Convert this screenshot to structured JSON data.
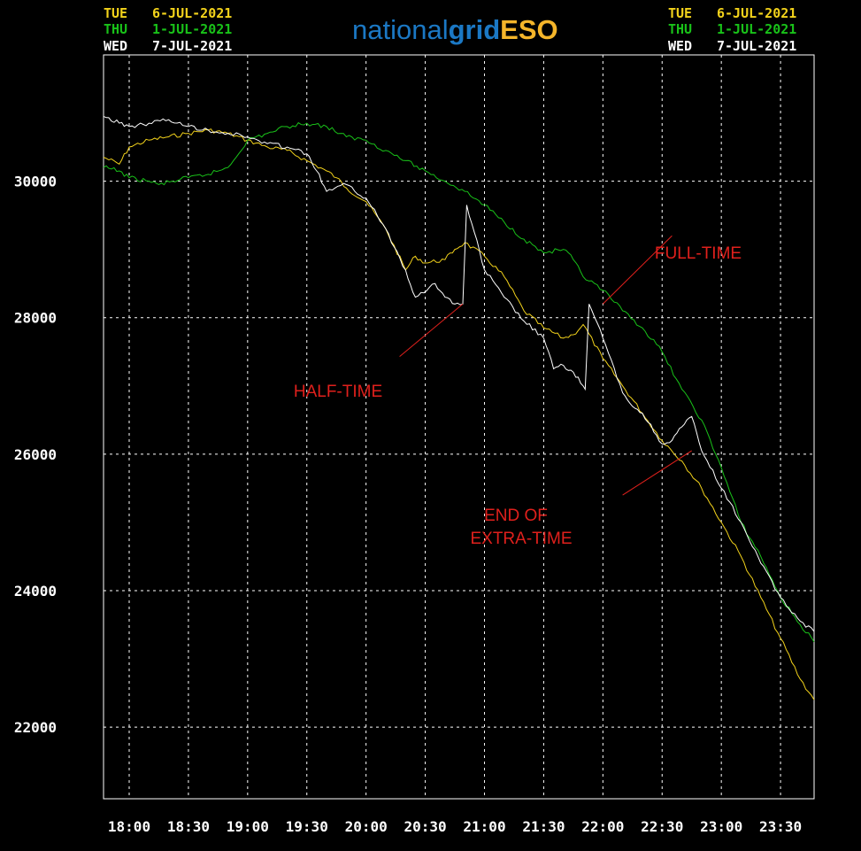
{
  "logo": {
    "part1": "national",
    "part2": "grid",
    "part3": "ESO"
  },
  "legend_left": [
    {
      "day": "TUE",
      "date": "6-JUL-2021",
      "color": "#f2d21b"
    },
    {
      "day": "THU",
      "date": "1-JUL-2021",
      "color": "#19c219"
    },
    {
      "day": "WED",
      "date": "7-JUL-2021",
      "color": "#ffffff"
    }
  ],
  "legend_right": [
    {
      "day": "TUE",
      "date": "6-JUL-2021",
      "color": "#f2d21b"
    },
    {
      "day": "THU",
      "date": "1-JUL-2021",
      "color": "#19c219"
    },
    {
      "day": "WED",
      "date": "7-JUL-2021",
      "color": "#ffffff"
    }
  ],
  "annotations": [
    {
      "text": "HALF-TIME",
      "color": "#e0201c"
    },
    {
      "text": "FULL-TIME",
      "color": "#e0201c"
    },
    {
      "text": "END OF",
      "color": "#e0201c"
    },
    {
      "text": "EXTRA-TIME",
      "color": "#e0201c"
    }
  ],
  "chart_data": {
    "type": "line",
    "x_ticks": [
      "18:00",
      "18:30",
      "19:00",
      "19:30",
      "20:00",
      "20:30",
      "21:00",
      "21:30",
      "22:00",
      "22:30",
      "23:00",
      "23:30"
    ],
    "y_ticks": [
      22000,
      24000,
      26000,
      28000,
      30000
    ],
    "xlim": [
      "17:47",
      "23:47"
    ],
    "ylim": [
      20950,
      31850
    ],
    "grid": true,
    "series": [
      {
        "name": "TUE 6-JUL-2021",
        "color": "#f2d21b",
        "points": [
          [
            "17:47",
            30350
          ],
          [
            "17:55",
            30250
          ],
          [
            "18:00",
            30500
          ],
          [
            "18:10",
            30600
          ],
          [
            "18:20",
            30650
          ],
          [
            "18:30",
            30700
          ],
          [
            "18:40",
            30750
          ],
          [
            "18:50",
            30700
          ],
          [
            "19:00",
            30600
          ],
          [
            "19:10",
            30500
          ],
          [
            "19:20",
            30450
          ],
          [
            "19:30",
            30300
          ],
          [
            "19:40",
            30150
          ],
          [
            "19:45",
            30050
          ],
          [
            "19:50",
            29900
          ],
          [
            "20:00",
            29700
          ],
          [
            "20:10",
            29300
          ],
          [
            "20:20",
            28700
          ],
          [
            "20:25",
            28900
          ],
          [
            "20:30",
            28800
          ],
          [
            "20:40",
            28850
          ],
          [
            "20:45",
            29000
          ],
          [
            "20:50",
            29100
          ],
          [
            "21:00",
            28900
          ],
          [
            "21:10",
            28600
          ],
          [
            "21:20",
            28100
          ],
          [
            "21:30",
            27850
          ],
          [
            "21:40",
            27700
          ],
          [
            "21:45",
            27750
          ],
          [
            "21:50",
            27900
          ],
          [
            "22:00",
            27400
          ],
          [
            "22:10",
            27000
          ],
          [
            "22:20",
            26600
          ],
          [
            "22:30",
            26200
          ],
          [
            "22:40",
            25900
          ],
          [
            "22:50",
            25500
          ],
          [
            "23:00",
            25000
          ],
          [
            "23:10",
            24500
          ],
          [
            "23:20",
            23900
          ],
          [
            "23:30",
            23300
          ],
          [
            "23:40",
            22700
          ],
          [
            "23:47",
            22400
          ]
        ]
      },
      {
        "name": "THU 1-JUL-2021",
        "color": "#19c219",
        "points": [
          [
            "17:47",
            30200
          ],
          [
            "17:55",
            30150
          ],
          [
            "18:00",
            30050
          ],
          [
            "18:10",
            30000
          ],
          [
            "18:15",
            29950
          ],
          [
            "18:30",
            30050
          ],
          [
            "18:40",
            30100
          ],
          [
            "18:50",
            30200
          ],
          [
            "19:00",
            30600
          ],
          [
            "19:10",
            30700
          ],
          [
            "19:20",
            30800
          ],
          [
            "19:30",
            30850
          ],
          [
            "19:40",
            30800
          ],
          [
            "19:50",
            30650
          ],
          [
            "20:00",
            30600
          ],
          [
            "20:10",
            30450
          ],
          [
            "20:20",
            30300
          ],
          [
            "20:30",
            30150
          ],
          [
            "20:40",
            30000
          ],
          [
            "20:50",
            29850
          ],
          [
            "21:00",
            29650
          ],
          [
            "21:10",
            29400
          ],
          [
            "21:20",
            29150
          ],
          [
            "21:30",
            28950
          ],
          [
            "21:40",
            29000
          ],
          [
            "21:45",
            28850
          ],
          [
            "21:50",
            28600
          ],
          [
            "22:00",
            28400
          ],
          [
            "22:10",
            28100
          ],
          [
            "22:20",
            27850
          ],
          [
            "22:30",
            27500
          ],
          [
            "22:40",
            26950
          ],
          [
            "22:50",
            26500
          ],
          [
            "23:00",
            25800
          ],
          [
            "23:10",
            25000
          ],
          [
            "23:20",
            24500
          ],
          [
            "23:30",
            23900
          ],
          [
            "23:40",
            23500
          ],
          [
            "23:47",
            23250
          ]
        ]
      },
      {
        "name": "WED 7-JUL-2021",
        "color": "#ffffff",
        "points": [
          [
            "17:47",
            30950
          ],
          [
            "17:55",
            30850
          ],
          [
            "18:00",
            30800
          ],
          [
            "18:10",
            30850
          ],
          [
            "18:20",
            30900
          ],
          [
            "18:30",
            30800
          ],
          [
            "18:40",
            30750
          ],
          [
            "18:50",
            30700
          ],
          [
            "19:00",
            30650
          ],
          [
            "19:10",
            30550
          ],
          [
            "19:20",
            30500
          ],
          [
            "19:30",
            30400
          ],
          [
            "19:35",
            30150
          ],
          [
            "19:40",
            29850
          ],
          [
            "19:50",
            29950
          ],
          [
            "20:00",
            29750
          ],
          [
            "20:10",
            29300
          ],
          [
            "20:20",
            28700
          ],
          [
            "20:25",
            28300
          ],
          [
            "20:35",
            28500
          ],
          [
            "20:40",
            28300
          ],
          [
            "20:45",
            28200
          ],
          [
            "20:49",
            28200
          ],
          [
            "20:51",
            29650
          ],
          [
            "21:00",
            28700
          ],
          [
            "21:10",
            28300
          ],
          [
            "21:20",
            27950
          ],
          [
            "21:30",
            27700
          ],
          [
            "21:35",
            27250
          ],
          [
            "21:40",
            27300
          ],
          [
            "21:45",
            27200
          ],
          [
            "21:50",
            27000
          ],
          [
            "21:51",
            26950
          ],
          [
            "21:53",
            28200
          ],
          [
            "22:00",
            27700
          ],
          [
            "22:10",
            26900
          ],
          [
            "22:15",
            26700
          ],
          [
            "22:20",
            26600
          ],
          [
            "22:30",
            26150
          ],
          [
            "22:35",
            26200
          ],
          [
            "22:40",
            26400
          ],
          [
            "22:45",
            26550
          ],
          [
            "22:50",
            26050
          ],
          [
            "23:00",
            25500
          ],
          [
            "23:10",
            25000
          ],
          [
            "23:20",
            24400
          ],
          [
            "23:30",
            23900
          ],
          [
            "23:40",
            23550
          ],
          [
            "23:47",
            23400
          ]
        ]
      }
    ]
  }
}
